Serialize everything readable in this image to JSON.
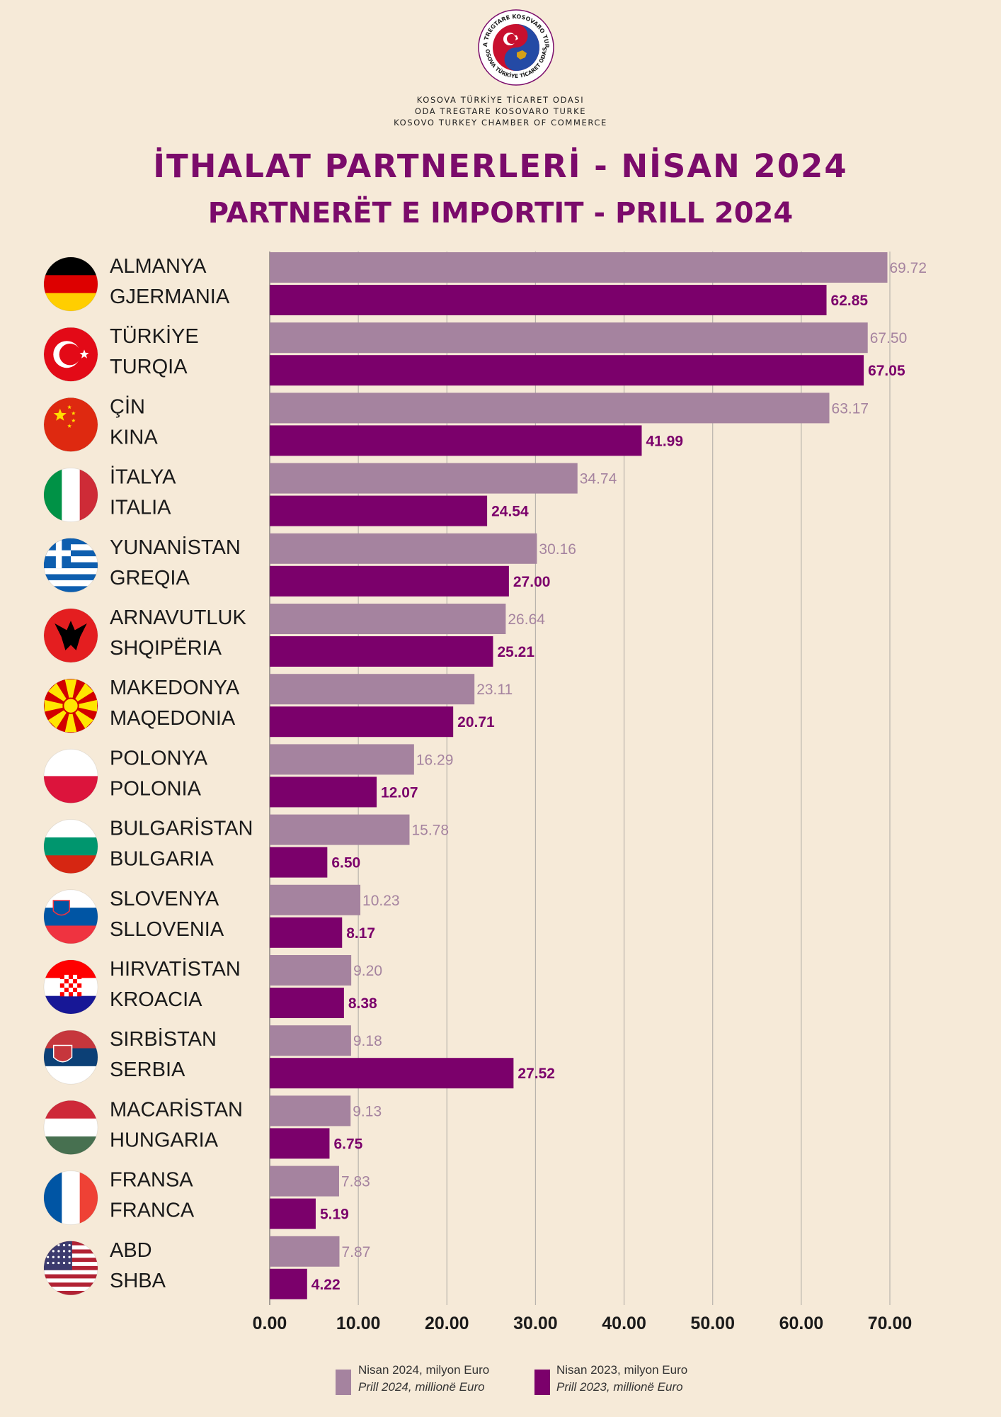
{
  "header": {
    "org_lines": [
      "KOSOVA TÜRKİYE TİCARET ODASI",
      "ODA TREGTARE KOSOVARO TURKE",
      "KOSOVO TURKEY CHAMBER OF COMMERCE"
    ],
    "logo_ring_text_top": "ODA TREGTARE KOSOVARO TURKE",
    "logo_ring_text_bottom": "KOSOVA TÜRKİYE TİCARET ODASI",
    "title_tr": "İTHALAT PARTNERLERİ - NİSAN 2024",
    "title_sq": "PARTNERËT E IMPORTIT - PRILL 2024"
  },
  "colors": {
    "background": "#f6ead8",
    "title": "#7b0b6b",
    "series_2024": "#a5839f",
    "series_2023": "#7b006b",
    "gridline": "#b9b4ad"
  },
  "chart_data": {
    "type": "bar",
    "orientation": "horizontal",
    "categories": [
      {
        "tr": "ALMANYA",
        "sq": "GJERMANIA",
        "flag": "germany-flag-icon"
      },
      {
        "tr": "TÜRKİYE",
        "sq": "TURQIA",
        "flag": "turkey-flag-icon"
      },
      {
        "tr": "ÇİN",
        "sq": "KINA",
        "flag": "china-flag-icon"
      },
      {
        "tr": "İTALYA",
        "sq": "ITALIA",
        "flag": "italy-flag-icon"
      },
      {
        "tr": "YUNANİSTAN",
        "sq": "GREQIA",
        "flag": "greece-flag-icon"
      },
      {
        "tr": "ARNAVUTLUK",
        "sq": "SHQIPËRIA",
        "flag": "albania-flag-icon"
      },
      {
        "tr": "MAKEDONYA",
        "sq": "MAQEDONIA",
        "flag": "north-macedonia-flag-icon"
      },
      {
        "tr": "POLONYA",
        "sq": "POLONIA",
        "flag": "poland-flag-icon"
      },
      {
        "tr": "BULGARİSTAN",
        "sq": "BULGARIA",
        "flag": "bulgaria-flag-icon"
      },
      {
        "tr": "SLOVENYA",
        "sq": "SLLOVENIA",
        "flag": "slovenia-flag-icon"
      },
      {
        "tr": "HIRVATİSTAN",
        "sq": "KROACIA",
        "flag": "croatia-flag-icon"
      },
      {
        "tr": "SIRBİSTAN",
        "sq": "SERBIA",
        "flag": "serbia-flag-icon"
      },
      {
        "tr": "MACARİSTAN",
        "sq": "HUNGARIA",
        "flag": "hungary-flag-icon"
      },
      {
        "tr": "FRANSA",
        "sq": "FRANCA",
        "flag": "france-flag-icon"
      },
      {
        "tr": "ABD",
        "sq": "SHBA",
        "flag": "usa-flag-icon"
      }
    ],
    "series": [
      {
        "name": "Nisan 2024, milyon Euro",
        "name_sq": "Prill 2024, millionë Euro",
        "values": [
          69.72,
          67.5,
          63.17,
          34.74,
          30.16,
          26.64,
          23.11,
          16.29,
          15.78,
          10.23,
          9.2,
          9.18,
          9.13,
          7.83,
          7.87
        ],
        "labels": [
          "69.72",
          "67.50",
          "63.17",
          "34.74",
          "30.16",
          "26.64",
          "23.11",
          "16.29",
          "15.78",
          "10.23",
          "9.20",
          "9.18",
          "9.13",
          "7.83",
          "7.87"
        ]
      },
      {
        "name": "Nisan 2023, milyon Euro",
        "name_sq": "Prill 2023, millionë Euro",
        "values": [
          62.85,
          67.05,
          41.99,
          24.54,
          27.0,
          25.21,
          20.71,
          12.07,
          6.5,
          8.17,
          8.38,
          27.52,
          6.75,
          5.19,
          4.22
        ],
        "labels": [
          "62.85",
          "67.05",
          "41.99",
          "24.54",
          "27.00",
          "25.21",
          "20.71",
          "12.07",
          "6.50",
          "8.17",
          "8.38",
          "27.52",
          "6.75",
          "5.19",
          "4.22"
        ]
      }
    ],
    "x_ticks": [
      "0.00",
      "10.00",
      "20.00",
      "30.00",
      "40.00",
      "50.00",
      "60.00",
      "70.00"
    ],
    "xlim": [
      0,
      70
    ],
    "grid": true,
    "legend_position": "bottom-center"
  }
}
